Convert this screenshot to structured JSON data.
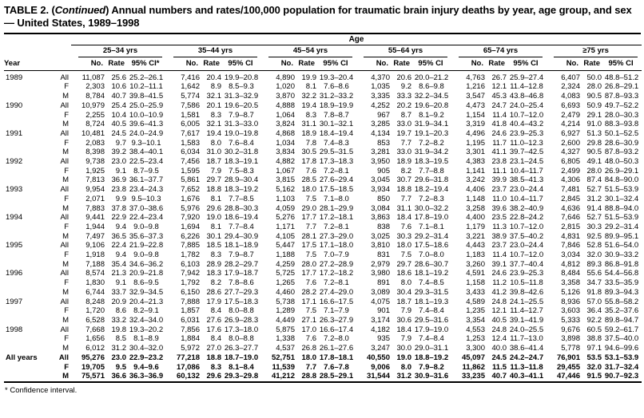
{
  "title": {
    "prefix": "TABLE 2. (",
    "italic": "Continued",
    "suffix": ") Annual numbers and rates/100,000 population for traumatic brain injury deaths by year, age group, and sex — United States, 1989–1998"
  },
  "table": {
    "span_label": "Age",
    "year_label": "Year",
    "no_label": "No.",
    "rate_label": "Rate",
    "groups": [
      {
        "label": "25–34 yrs",
        "ci": "95% CI*"
      },
      {
        "label": "35–44 yrs",
        "ci": "95% CI"
      },
      {
        "label": "45–54 yrs",
        "ci": "95% CI"
      },
      {
        "label": "55–64 yrs",
        "ci": "95% CI"
      },
      {
        "label": "65–74 yrs",
        "ci": "95% CI"
      },
      {
        "label": "≥75 yrs",
        "ci": "95% CI"
      }
    ],
    "rows": [
      {
        "year": "1989",
        "sex": "All",
        "bold": false,
        "values": [
          "11,087",
          "25.6",
          "25.2–26.1",
          "7,416",
          "20.4",
          "19.9–20.8",
          "4,890",
          "19.9",
          "19.3–20.4",
          "4,370",
          "20.6",
          "20.0–21.2",
          "4,763",
          "26.7",
          "25.9–27.4",
          "6,407",
          "50.0",
          "48.8–51.2"
        ]
      },
      {
        "year": "",
        "sex": "F",
        "bold": false,
        "values": [
          "2,303",
          "10.6",
          "10.2–11.1",
          "1,642",
          "8.9",
          "8.5–9.3",
          "1,020",
          "8.1",
          "7.6–8.6",
          "1,035",
          "9.2",
          "8.6–9.8",
          "1,216",
          "12.1",
          "11.4–12.8",
          "2,324",
          "28.0",
          "26.8–29.1"
        ]
      },
      {
        "year": "",
        "sex": "M",
        "bold": false,
        "values": [
          "8,784",
          "40.7",
          "39.8–41.5",
          "5,774",
          "32.1",
          "31.3–32.9",
          "3,870",
          "32.2",
          "31.2–33.2",
          "3,335",
          "33.3",
          "32.2–34.5",
          "3,547",
          "45.3",
          "43.8–46.8",
          "4,083",
          "90.5",
          "87.8–93.3"
        ]
      },
      {
        "year": "1990",
        "sex": "All",
        "bold": false,
        "values": [
          "10,979",
          "25.4",
          "25.0–25.9",
          "7,586",
          "20.1",
          "19.6–20.5",
          "4,888",
          "19.4",
          "18.9–19.9",
          "4,252",
          "20.2",
          "19.6–20.8",
          "4,473",
          "24.7",
          "24.0–25.4",
          "6,693",
          "50.9",
          "49.7–52.2"
        ]
      },
      {
        "year": "",
        "sex": "F",
        "bold": false,
        "values": [
          "2,255",
          "10.4",
          "10.0–10.9",
          "1,581",
          "8.3",
          "7.9–8.7",
          "1,064",
          "8.3",
          "7.8–8.7",
          "967",
          "8.7",
          "8.1–9.2",
          "1,154",
          "11.4",
          "10.7–12.0",
          "2,479",
          "29.1",
          "28.0–30.3"
        ]
      },
      {
        "year": "",
        "sex": "M",
        "bold": false,
        "values": [
          "8,724",
          "40.5",
          "39.6–41.3",
          "6,005",
          "32.1",
          "31.3–33.0",
          "3,824",
          "31.1",
          "30.1–32.1",
          "3,285",
          "33.0",
          "31.9–34.1",
          "3,319",
          "41.8",
          "40.4–43.2",
          "4,214",
          "91.0",
          "88.3–93.8"
        ]
      },
      {
        "year": "1991",
        "sex": "All",
        "bold": false,
        "values": [
          "10,481",
          "24.5",
          "24.0–24.9",
          "7,617",
          "19.4",
          "19.0–19.8",
          "4,868",
          "18.9",
          "18.4–19.4",
          "4,134",
          "19.7",
          "19.1–20.3",
          "4,496",
          "24.6",
          "23.9–25.3",
          "6,927",
          "51.3",
          "50.1–52.5"
        ]
      },
      {
        "year": "",
        "sex": "F",
        "bold": false,
        "values": [
          "2,083",
          "9.7",
          "9.3–10.1",
          "1,583",
          "8.0",
          "7.6–8.4",
          "1,034",
          "7.8",
          "7.4–8.3",
          "853",
          "7.7",
          "7.2–8.2",
          "1,195",
          "11.7",
          "11.0–12.3",
          "2,600",
          "29.8",
          "28.6–30.9"
        ]
      },
      {
        "year": "",
        "sex": "M",
        "bold": false,
        "values": [
          "8,398",
          "39.2",
          "38.4–40.1",
          "6,034",
          "31.0",
          "30.2–31.8",
          "3,834",
          "30.5",
          "29.5–31.5",
          "3,281",
          "33.0",
          "31.9–34.2",
          "3,301",
          "41.1",
          "39.7–42.5",
          "4,327",
          "90.5",
          "87.8–93.2"
        ]
      },
      {
        "year": "1992",
        "sex": "All",
        "bold": false,
        "values": [
          "9,738",
          "23.0",
          "22.5–23.4",
          "7,456",
          "18.7",
          "18.3–19.1",
          "4,882",
          "17.8",
          "17.3–18.3",
          "3,950",
          "18.9",
          "18.3–19.5",
          "4,383",
          "23.8",
          "23.1–24.5",
          "6,805",
          "49.1",
          "48.0–50.3"
        ]
      },
      {
        "year": "",
        "sex": "F",
        "bold": false,
        "values": [
          "1,925",
          "9.1",
          "8.7–9.5",
          "1,595",
          "7.9",
          "7.5–8.3",
          "1,067",
          "7.6",
          "7.2–8.1",
          "905",
          "8.2",
          "7.7–8.8",
          "1,141",
          "11.1",
          "10.4–11.7",
          "2,499",
          "28.0",
          "26.9–29.1"
        ]
      },
      {
        "year": "",
        "sex": "M",
        "bold": false,
        "values": [
          "7,813",
          "36.9",
          "36.1–37.7",
          "5,861",
          "29.7",
          "28.9–30.4",
          "3,815",
          "28.5",
          "27.6–29.4",
          "3,045",
          "30.7",
          "29.6–31.8",
          "3,242",
          "39.9",
          "38.5–41.3",
          "4,306",
          "87.4",
          "84.8–90.0"
        ]
      },
      {
        "year": "1993",
        "sex": "All",
        "bold": false,
        "values": [
          "9,954",
          "23.8",
          "23.4–24.3",
          "7,652",
          "18.8",
          "18.3–19.2",
          "5,162",
          "18.0",
          "17.5–18.5",
          "3,934",
          "18.8",
          "18.2–19.4",
          "4,406",
          "23.7",
          "23.0–24.4",
          "7,481",
          "52.7",
          "51.5–53.9"
        ]
      },
      {
        "year": "",
        "sex": "F",
        "bold": false,
        "values": [
          "2,071",
          "9.9",
          "9.5–10.3",
          "1,676",
          "8.1",
          "7.7–8.5",
          "1,103",
          "7.5",
          "7.1–8.0",
          "850",
          "7.7",
          "7.2–8.3",
          "1,148",
          "11.0",
          "10.4–11.7",
          "2,845",
          "31.2",
          "30.1–32.4"
        ]
      },
      {
        "year": "",
        "sex": "M",
        "bold": false,
        "values": [
          "7,883",
          "37.8",
          "37.0–38.6",
          "5,976",
          "29.6",
          "28.8–30.3",
          "4,059",
          "29.0",
          "28.1–29.9",
          "3,084",
          "31.1",
          "30.0–32.2",
          "3,258",
          "39.6",
          "38.2–40.9",
          "4,636",
          "91.4",
          "88.8–94.0"
        ]
      },
      {
        "year": "1994",
        "sex": "All",
        "bold": false,
        "values": [
          "9,441",
          "22.9",
          "22.4–23.4",
          "7,920",
          "19.0",
          "18.6–19.4",
          "5,276",
          "17.7",
          "17.2–18.1",
          "3,863",
          "18.4",
          "17.8–19.0",
          "4,400",
          "23.5",
          "22.8–24.2",
          "7,646",
          "52.7",
          "51.5–53.9"
        ]
      },
      {
        "year": "",
        "sex": "F",
        "bold": false,
        "values": [
          "1,944",
          "9.4",
          "9.0–9.8",
          "1,694",
          "8.1",
          "7.7–8.4",
          "1,171",
          "7.7",
          "7.2–8.1",
          "838",
          "7.6",
          "7.1–8.1",
          "1,179",
          "11.3",
          "10.7–12.0",
          "2,815",
          "30.3",
          "29.2–31.4"
        ]
      },
      {
        "year": "",
        "sex": "M",
        "bold": false,
        "values": [
          "7,497",
          "36.5",
          "35.6–37.3",
          "6,226",
          "30.1",
          "29.4–30.9",
          "4,105",
          "28.1",
          "27.3–29.0",
          "3,025",
          "30.3",
          "29.2–31.4",
          "3,221",
          "38.9",
          "37.5–40.2",
          "4,831",
          "92.5",
          "89.9–95.1"
        ]
      },
      {
        "year": "1995",
        "sex": "All",
        "bold": false,
        "values": [
          "9,106",
          "22.4",
          "21.9–22.8",
          "7,885",
          "18.5",
          "18.1–18.9",
          "5,447",
          "17.5",
          "17.1–18.0",
          "3,810",
          "18.0",
          "17.5–18.6",
          "4,443",
          "23.7",
          "23.0–24.4",
          "7,846",
          "52.8",
          "51.6–54.0"
        ]
      },
      {
        "year": "",
        "sex": "F",
        "bold": false,
        "values": [
          "1,918",
          "9.4",
          "9.0–9.8",
          "1,782",
          "8.3",
          "7.9–8.7",
          "1,188",
          "7.5",
          "7.0–7.9",
          "831",
          "7.5",
          "7.0–8.0",
          "1,183",
          "11.4",
          "10.7–12.0",
          "3,034",
          "32.0",
          "30.9–33.2"
        ]
      },
      {
        "year": "",
        "sex": "M",
        "bold": false,
        "values": [
          "7,188",
          "35.4",
          "34.6–36.2",
          "6,103",
          "28.9",
          "28.2–29.7",
          "4,259",
          "28.0",
          "27.2–28.9",
          "2,979",
          "29.7",
          "28.6–30.7",
          "3,260",
          "39.1",
          "37.7–40.4",
          "4,812",
          "89.3",
          "86.8–91.8"
        ]
      },
      {
        "year": "1996",
        "sex": "All",
        "bold": false,
        "values": [
          "8,574",
          "21.3",
          "20.9–21.8",
          "7,942",
          "18.3",
          "17.9–18.7",
          "5,725",
          "17.7",
          "17.2–18.2",
          "3,980",
          "18.6",
          "18.1–19.2",
          "4,591",
          "24.6",
          "23.9–25.3",
          "8,484",
          "55.6",
          "54.4–56.8"
        ]
      },
      {
        "year": "",
        "sex": "F",
        "bold": false,
        "values": [
          "1,830",
          "9.1",
          "8.6–9.5",
          "1,792",
          "8.2",
          "7.8–8.6",
          "1,265",
          "7.6",
          "7.2–8.1",
          "891",
          "8.0",
          "7.4–8.5",
          "1,158",
          "11.2",
          "10.5–11.8",
          "3,358",
          "34.7",
          "33.5–35.9"
        ]
      },
      {
        "year": "",
        "sex": "M",
        "bold": false,
        "values": [
          "6,744",
          "33.7",
          "32.9–34.5",
          "6,150",
          "28.6",
          "27.7–29.3",
          "4,460",
          "28.2",
          "27.4–29.0",
          "3,089",
          "30.4",
          "29.3–31.5",
          "3,433",
          "41.2",
          "39.8–42.6",
          "5,126",
          "91.8",
          "89.3–94.3"
        ]
      },
      {
        "year": "1997",
        "sex": "All",
        "bold": false,
        "values": [
          "8,248",
          "20.9",
          "20.4–21.3",
          "7,888",
          "17.9",
          "17.5–18.3",
          "5,738",
          "17.1",
          "16.6–17.5",
          "4,075",
          "18.7",
          "18.1–19.3",
          "4,589",
          "24.8",
          "24.1–25.5",
          "8,936",
          "57.0",
          "55.8–58.2"
        ]
      },
      {
        "year": "",
        "sex": "F",
        "bold": false,
        "values": [
          "1,720",
          "8.6",
          "8.2–9.1",
          "1,857",
          "8.4",
          "8.0–8.8",
          "1,289",
          "7.5",
          "7.1–7.9",
          "901",
          "7.9",
          "7.4–8.4",
          "1,235",
          "12.1",
          "11.4–12.7",
          "3,603",
          "36.4",
          "35.2–37.6"
        ]
      },
      {
        "year": "",
        "sex": "M",
        "bold": false,
        "values": [
          "6,528",
          "33.2",
          "32.4–34.0",
          "6,031",
          "27.6",
          "26.9–28.3",
          "4,449",
          "27.1",
          "26.3–27.9",
          "3,174",
          "30.6",
          "29.5–31.6",
          "3,354",
          "40.5",
          "39.1–41.9",
          "5,333",
          "92.2",
          "89.8–94.7"
        ]
      },
      {
        "year": "1998",
        "sex": "All",
        "bold": false,
        "values": [
          "7,668",
          "19.8",
          "19.3–20.2",
          "7,856",
          "17.6",
          "17.3–18.0",
          "5,875",
          "17.0",
          "16.6–17.4",
          "4,182",
          "18.4",
          "17.9–19.0",
          "4,553",
          "24.8",
          "24.0–25.5",
          "9,676",
          "60.5",
          "59.2–61.7"
        ]
      },
      {
        "year": "",
        "sex": "F",
        "bold": false,
        "values": [
          "1,656",
          "8.5",
          "8.1–8.9",
          "1,884",
          "8.4",
          "8.0–8.8",
          "1,338",
          "7.6",
          "7.2–8.0",
          "935",
          "7.9",
          "7.4–8.4",
          "1,253",
          "12.4",
          "11.7–13.0",
          "3,898",
          "38.8",
          "37.5–40.0"
        ]
      },
      {
        "year": "",
        "sex": "M",
        "bold": false,
        "values": [
          "6,012",
          "31.2",
          "30.4–32.0",
          "5,972",
          "27.0",
          "26.3–27.7",
          "4,537",
          "26.8",
          "26.1–27.6",
          "3,247",
          "30.0",
          "29.0–31.1",
          "3,300",
          "40.0",
          "38.6–41.4",
          "5,778",
          "97.1",
          "94.6–99.6"
        ]
      },
      {
        "year": "All years",
        "sex": "All",
        "bold": true,
        "values": [
          "95,276",
          "23.0",
          "22.9–23.2",
          "77,218",
          "18.8",
          "18.7–19.0",
          "52,751",
          "18.0",
          "17.8–18.1",
          "40,550",
          "19.0",
          "18.8–19.2",
          "45,097",
          "24.5",
          "24.2–24.7",
          "76,901",
          "53.5",
          "53.1–53.9"
        ]
      },
      {
        "year": "",
        "sex": "F",
        "bold": true,
        "values": [
          "19,705",
          "9.5",
          "9.4–9.6",
          "17,086",
          "8.3",
          "8.1–8.4",
          "11,539",
          "7.7",
          "7.6–7.8",
          "9,006",
          "8.0",
          "7.9–8.2",
          "11,862",
          "11.5",
          "11.3–11.8",
          "29,455",
          "32.0",
          "31.7–32.4"
        ]
      },
      {
        "year": "",
        "sex": "M",
        "bold": true,
        "values": [
          "75,571",
          "36.6",
          "36.3–36.9",
          "60,132",
          "29.6",
          "29.3–29.8",
          "41,212",
          "28.8",
          "28.5–29.1",
          "31,544",
          "31.2",
          "30.9–31.6",
          "33,235",
          "40.7",
          "40.3–41.1",
          "47,446",
          "91.5",
          "90.7–92.3"
        ]
      }
    ]
  },
  "footnote": "* Confidence interval."
}
